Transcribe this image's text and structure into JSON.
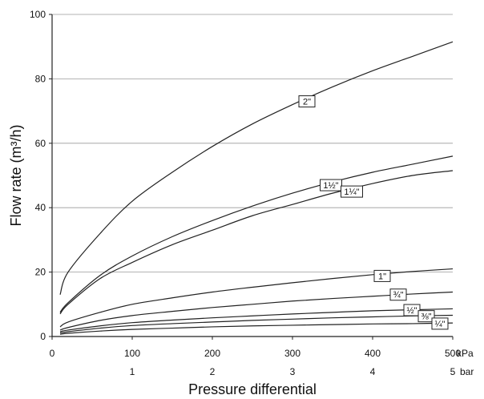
{
  "chart_data": {
    "type": "line",
    "title": "",
    "xlabel": "Pressure differential",
    "ylabel": "Flow rate (m³/h)",
    "xlim": [
      0,
      500
    ],
    "ylim": [
      0,
      100
    ],
    "x_ticks_kpa": [
      "0",
      "100",
      "200",
      "300",
      "400",
      "500"
    ],
    "x_ticks_bar": [
      "1",
      "2",
      "3",
      "4",
      "5"
    ],
    "x_unit_kpa": "kPa",
    "x_unit_bar": "bar",
    "y_ticks": [
      "0",
      "20",
      "40",
      "60",
      "80",
      "100"
    ],
    "grid": "horizontal",
    "series": [
      {
        "name": "2\"",
        "x": [
          10,
          20,
          60,
          100,
          150,
          200,
          250,
          300,
          350,
          400,
          450,
          500
        ],
        "y": [
          13,
          20,
          32,
          42,
          51,
          59,
          66,
          72,
          77.5,
          82.5,
          87,
          91.5
        ]
      },
      {
        "name": "1½\"",
        "x": [
          10,
          20,
          60,
          100,
          150,
          200,
          250,
          300,
          350,
          400,
          450,
          500
        ],
        "y": [
          7.5,
          10.5,
          19,
          25,
          31,
          36,
          40.5,
          44.5,
          48,
          51,
          53.5,
          56
        ]
      },
      {
        "name": "1¼\"",
        "x": [
          10,
          20,
          60,
          100,
          150,
          200,
          250,
          300,
          350,
          400,
          450,
          500
        ],
        "y": [
          7,
          10,
          18,
          23,
          28.5,
          33,
          37.5,
          41,
          44.5,
          47.5,
          50,
          51.5
        ]
      },
      {
        "name": "1\"",
        "x": [
          10,
          20,
          60,
          100,
          150,
          200,
          250,
          300,
          350,
          400,
          450,
          500
        ],
        "y": [
          3,
          4.5,
          7.5,
          10,
          12,
          13.8,
          15.3,
          16.7,
          18,
          19.2,
          20.2,
          21
        ]
      },
      {
        "name": "¾\"",
        "x": [
          10,
          20,
          60,
          100,
          150,
          200,
          250,
          300,
          350,
          400,
          450,
          500
        ],
        "y": [
          2,
          2.8,
          5,
          6.5,
          7.8,
          9,
          10,
          11,
          11.8,
          12.5,
          13.2,
          13.8
        ]
      },
      {
        "name": "½\"",
        "x": [
          10,
          20,
          60,
          100,
          150,
          200,
          250,
          300,
          350,
          400,
          450,
          500
        ],
        "y": [
          1.5,
          2,
          3.3,
          4.3,
          5.1,
          5.8,
          6.4,
          7,
          7.5,
          8,
          8.3,
          8.6
        ]
      },
      {
        "name": "⅜\"",
        "x": [
          10,
          20,
          60,
          100,
          150,
          200,
          250,
          300,
          350,
          400,
          450,
          500
        ],
        "y": [
          1.1,
          1.5,
          2.6,
          3.4,
          4,
          4.5,
          5,
          5.4,
          5.8,
          6.1,
          6.4,
          6.6
        ]
      },
      {
        "name": "¼\"",
        "x": [
          10,
          20,
          60,
          100,
          150,
          200,
          250,
          300,
          350,
          400,
          450,
          500
        ],
        "y": [
          0.7,
          1,
          1.7,
          2.2,
          2.6,
          3,
          3.3,
          3.5,
          3.7,
          3.9,
          4,
          4.2
        ]
      }
    ],
    "series_labels": [
      {
        "text": "2\"",
        "x": 318,
        "y": 73
      },
      {
        "text": "1½\"",
        "x": 348,
        "y": 47
      },
      {
        "text": "1¼\"",
        "x": 374,
        "y": 45
      },
      {
        "text": "1\"",
        "x": 412,
        "y": 18.8
      },
      {
        "text": "¾\"",
        "x": 432,
        "y": 13
      },
      {
        "text": "½\"",
        "x": 449,
        "y": 8.2
      },
      {
        "text": "⅜\"",
        "x": 467,
        "y": 6.3
      },
      {
        "text": "¼\"",
        "x": 484,
        "y": 4
      }
    ]
  }
}
